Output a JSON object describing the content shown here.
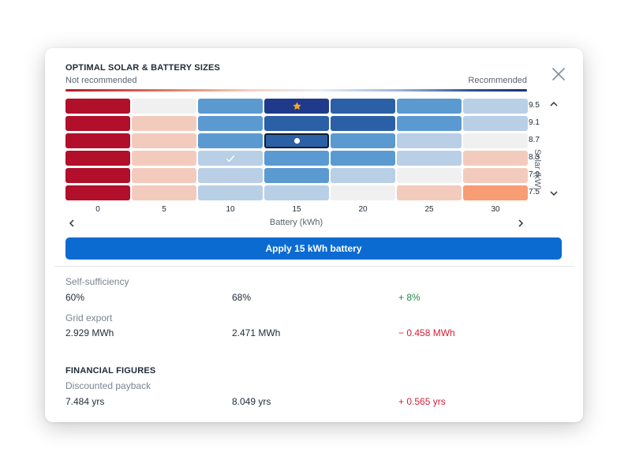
{
  "panel": {
    "title": "OPTIMAL SOLAR & BATTERY SIZES",
    "scale_left": "Not recommended",
    "scale_right": "Recommended"
  },
  "heatmap": {
    "battery_kwh": [
      "0",
      "5",
      "10",
      "15",
      "20",
      "25",
      "30"
    ],
    "solar_kw": [
      "9.5",
      "9.1",
      "8.7",
      "8.3",
      "7.9",
      "7.5"
    ],
    "x_axis_label": "Battery (kWh)",
    "y_axis_label": "Solar (kW)",
    "cell_colors": [
      [
        "#b20f2a",
        "#f0f0f0",
        "#5b9ad1",
        "#1f3a8a",
        "#2b60a6",
        "#5b9ad1",
        "#b9cfe6"
      ],
      [
        "#b20f2a",
        "#f3cbbd",
        "#5b9ad1",
        "#2b60a6",
        "#2b60a6",
        "#5b9ad1",
        "#b9cfe6"
      ],
      [
        "#b20f2a",
        "#f3cbbd",
        "#5b9ad1",
        "#2b60a6",
        "#5b9ad1",
        "#b9cfe6",
        "#f0f0f0"
      ],
      [
        "#b20f2a",
        "#f3cbbd",
        "#b9cfe6",
        "#5b9ad1",
        "#5b9ad1",
        "#b9cfe6",
        "#f3cbbd"
      ],
      [
        "#b20f2a",
        "#f3cbbd",
        "#b9cfe6",
        "#5b9ad1",
        "#b9cfe6",
        "#f0f0f0",
        "#f3cbbd"
      ],
      [
        "#b20f2a",
        "#f3cbbd",
        "#b9cfe6",
        "#b9cfe6",
        "#f0f0f0",
        "#f3cbbd",
        "#f89c74"
      ]
    ],
    "optimal_icon": "star-icon",
    "selected_icon": "dot-icon",
    "current_icon": "check-icon",
    "star_color": "#f5a623"
  },
  "apply_button": "Apply 15 kWh battery",
  "metrics": {
    "self_sufficiency": {
      "label": "Self-sufficiency",
      "current": "60%",
      "new": "68%",
      "delta": "+ 8%"
    },
    "grid_export": {
      "label": "Grid export",
      "current": "2.929 MWh",
      "new": "2.471 MWh",
      "delta": "− 0.458 MWh"
    }
  },
  "financial": {
    "heading": "FINANCIAL FIGURES",
    "payback": {
      "label": "Discounted payback",
      "current": "7.484 yrs",
      "new": "8.049 yrs",
      "delta": "+ 0.565 yrs"
    }
  },
  "colors": {
    "accent": "#0b6bd1",
    "positive": "#1e8a4c",
    "negative": "#d62036"
  }
}
